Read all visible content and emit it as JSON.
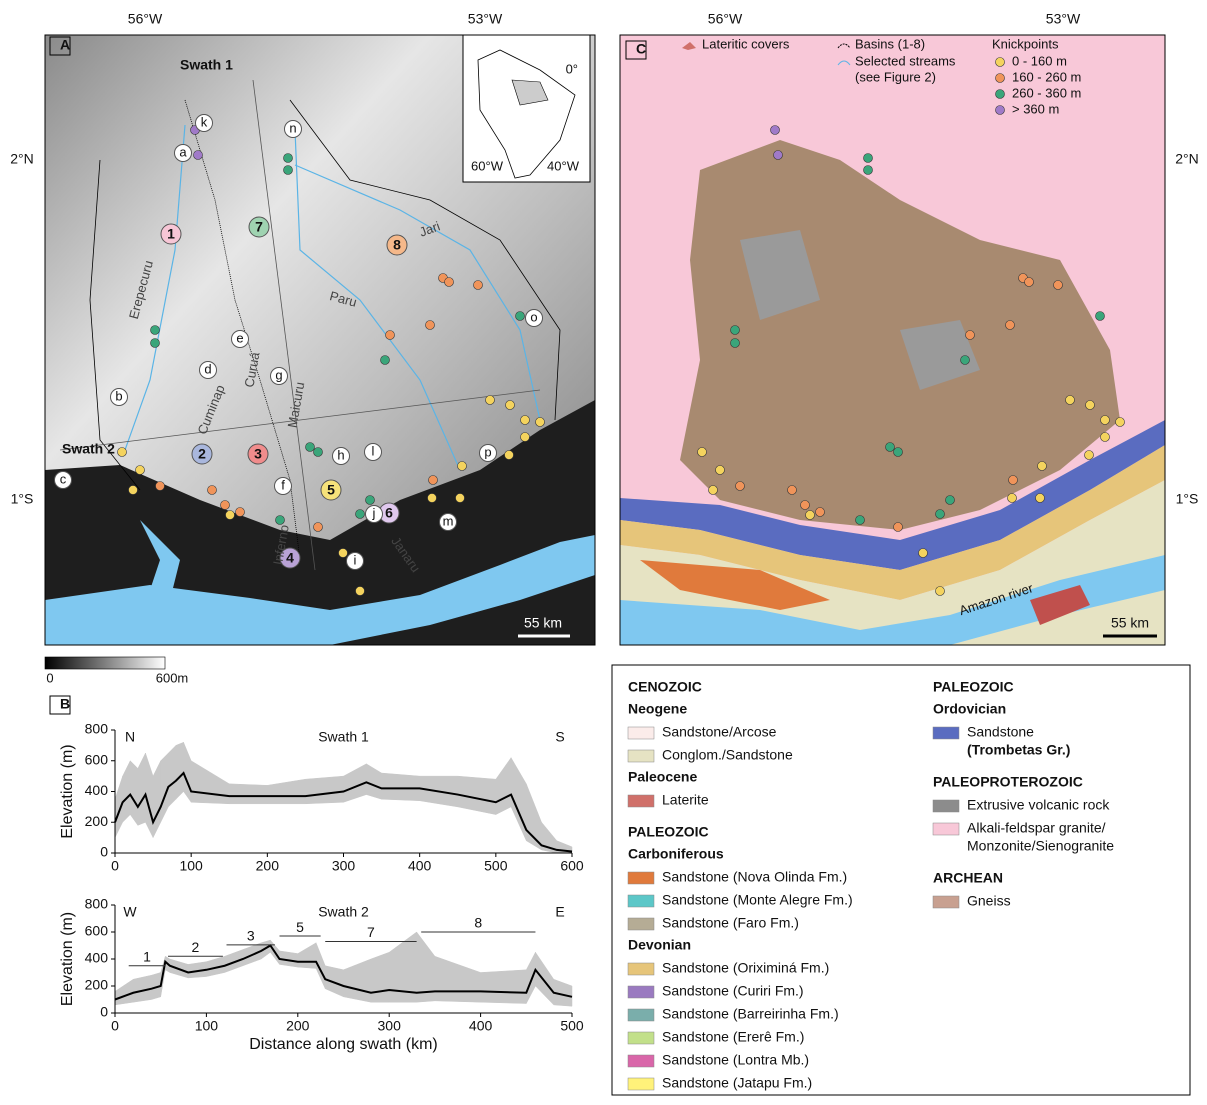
{
  "panel_a": {
    "label": "A",
    "lon": [
      "56°W",
      "53°W"
    ],
    "lat": [
      "2°N",
      "1°S"
    ],
    "swaths": [
      "Swath 1",
      "Swath 2"
    ],
    "basins": [
      "1",
      "2",
      "3",
      "4",
      "5",
      "6",
      "7",
      "8"
    ],
    "sites": [
      "a",
      "b",
      "c",
      "d",
      "e",
      "f",
      "g",
      "h",
      "i",
      "j",
      "k",
      "l",
      "m",
      "n",
      "o",
      "p"
    ],
    "rivers": [
      "Erepecuru",
      "Cuminap",
      "Curuá",
      "Maicuru",
      "Inferno",
      "Paru",
      "Jari",
      "Janaru"
    ],
    "inset": [
      "0°",
      "60°W",
      "40°W"
    ],
    "scale": "55 km",
    "colorbar": [
      "0",
      "600m"
    ]
  },
  "panel_b": {
    "label": "B"
  },
  "panel_c": {
    "label": "C",
    "legend": {
      "laterite": "Lateritic covers",
      "basins": "Basins (1-8)",
      "streams": [
        "Selected streams",
        "(see Figure 2)"
      ],
      "knick_title": "Knickpoints",
      "knick": [
        {
          "label": "0   - 160 m",
          "color": "#f4d35e"
        },
        {
          "label": "160 - 260 m",
          "color": "#f0945a"
        },
        {
          "label": "260 - 360 m",
          "color": "#3aa57a"
        },
        {
          "label": "> 360 m",
          "color": "#a07ac8"
        }
      ]
    },
    "river": "Amazon river",
    "scale": "55 km"
  },
  "legend": {
    "columns": [
      [
        {
          "era": "CENOZOIC"
        },
        {
          "period": "Neogene"
        },
        {
          "label": "Sandstone/Arcose",
          "color": "#fbecea"
        },
        {
          "label": "Conglom./Sandstone",
          "color": "#e6e3c3"
        },
        {
          "period": "Paleocene"
        },
        {
          "label": "Laterite",
          "color": "#d0706a"
        },
        {
          "era": "PALEOZOIC"
        },
        {
          "period": "Carboniferous"
        },
        {
          "label": "Sandstone (Nova Olinda Fm.)",
          "color": "#e07a3c"
        },
        {
          "label": "Sandstone (Monte Alegre Fm.)",
          "color": "#5cc7c8"
        },
        {
          "label": "Sandstone (Faro Fm.)",
          "color": "#b5ac95"
        },
        {
          "period": "Devonian"
        },
        {
          "label": "Sandstone (Oriximiná Fm.)",
          "color": "#e6c57a"
        },
        {
          "label": "Sandstone (Curiri Fm.)",
          "color": "#9a7ac0"
        },
        {
          "label": "Sandstone (Barreirinha Fm.)",
          "color": "#7aaeab"
        },
        {
          "label": "Sandstone (Ererê Fm.)",
          "color": "#c2e08a"
        },
        {
          "label": "Sandstone (Lontra Mb.)",
          "color": "#d966a9"
        },
        {
          "label": "Sandstone (Jatapu Fm.)",
          "color": "#fff27a"
        }
      ],
      [
        {
          "era": "PALEOZOIC"
        },
        {
          "period": "Ordovician"
        },
        {
          "label": "Sandstone",
          "strong": "(Trombetas Gr.)",
          "color": "#5a6cc0"
        },
        {
          "era": "PALEOPROTEROZOIC"
        },
        {
          "label": "Extrusive volcanic rock",
          "color": "#8c8c8c"
        },
        {
          "label": "Alkali-feldspar granite/",
          "more": "Monzonite/Sienogranite",
          "color": "#f8c8d8"
        },
        {
          "era": "ARCHEAN"
        },
        {
          "label": "Gneiss",
          "color": "#c8a090"
        }
      ]
    ]
  },
  "chart_data": [
    {
      "type": "line",
      "title": "Swath 1",
      "y_label": "Elevation (m)",
      "annotations": [
        "N",
        "S"
      ],
      "x": [
        0,
        10,
        20,
        30,
        40,
        50,
        60,
        70,
        80,
        90,
        100,
        150,
        200,
        250,
        300,
        330,
        350,
        400,
        450,
        500,
        520,
        540,
        560,
        580,
        600
      ],
      "series": [
        {
          "color": "#c8c8c8",
          "values": [
            350,
            500,
            600,
            550,
            650,
            500,
            600,
            650,
            700,
            720,
            600,
            450,
            440,
            480,
            500,
            580,
            520,
            500,
            500,
            480,
            620,
            450,
            200,
            80,
            40
          ]
        },
        {
          "color": "#c8c8c8",
          "values": [
            100,
            200,
            250,
            180,
            200,
            100,
            200,
            300,
            350,
            400,
            330,
            320,
            320,
            320,
            330,
            380,
            350,
            340,
            300,
            250,
            300,
            80,
            20,
            0,
            0
          ]
        },
        {
          "color": "#000000",
          "values": [
            200,
            330,
            380,
            300,
            380,
            200,
            300,
            430,
            470,
            520,
            400,
            370,
            370,
            370,
            400,
            460,
            420,
            420,
            380,
            330,
            380,
            150,
            50,
            20,
            10
          ]
        }
      ],
      "xlim": [
        0,
        600
      ],
      "xticks": [
        0,
        100,
        200,
        300,
        400,
        500,
        600
      ],
      "ylim": [
        0,
        800
      ],
      "yticks": [
        0,
        200,
        400,
        600,
        800
      ]
    },
    {
      "type": "line",
      "title": "Swath 2",
      "y_label": "Elevation (m)",
      "x_label": "Distance along swath (km)",
      "annotations": [
        "W",
        "E"
      ],
      "x": [
        0,
        20,
        40,
        50,
        55,
        60,
        80,
        100,
        120,
        140,
        160,
        170,
        180,
        200,
        220,
        230,
        250,
        280,
        300,
        330,
        350,
        400,
        450,
        460,
        480,
        500
      ],
      "series": [
        {
          "color": "#c8c8c8",
          "values": [
            160,
            250,
            280,
            300,
            420,
            400,
            360,
            380,
            420,
            470,
            520,
            540,
            460,
            440,
            520,
            350,
            320,
            400,
            450,
            600,
            420,
            300,
            320,
            450,
            250,
            200
          ]
        },
        {
          "color": "#c8c8c8",
          "values": [
            60,
            80,
            100,
            120,
            320,
            300,
            260,
            270,
            300,
            350,
            400,
            450,
            360,
            340,
            330,
            180,
            120,
            80,
            80,
            80,
            90,
            80,
            70,
            200,
            60,
            50
          ]
        },
        {
          "color": "#000000",
          "values": [
            100,
            150,
            180,
            200,
            380,
            350,
            300,
            320,
            350,
            400,
            460,
            500,
            400,
            380,
            380,
            250,
            200,
            150,
            170,
            150,
            160,
            160,
            150,
            320,
            150,
            120
          ]
        }
      ],
      "segments": [
        {
          "label": "1",
          "start": 15,
          "end": 55
        },
        {
          "label": "2",
          "start": 58,
          "end": 118
        },
        {
          "label": "3",
          "start": 122,
          "end": 175
        },
        {
          "label": "5",
          "start": 180,
          "end": 225
        },
        {
          "label": "7",
          "start": 230,
          "end": 330
        },
        {
          "label": "8",
          "start": 335,
          "end": 460
        }
      ],
      "xlim": [
        0,
        500
      ],
      "xticks": [
        0,
        100,
        200,
        300,
        400,
        500
      ],
      "ylim": [
        0,
        800
      ],
      "yticks": [
        0,
        200,
        400,
        600,
        800
      ]
    }
  ]
}
